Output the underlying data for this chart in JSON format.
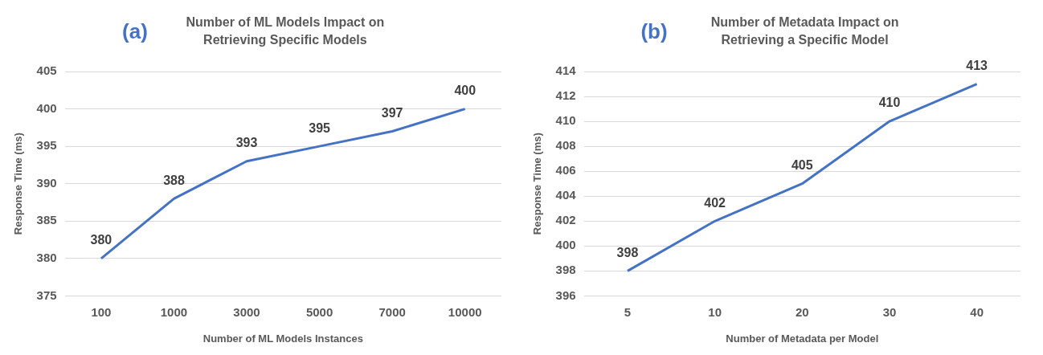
{
  "chart_data": [
    {
      "type": "line",
      "title": "Number of ML Models Impact on Retrieving Specific Models",
      "annotations": [
        "(a)"
      ],
      "xlabel": "Number of ML Models Instances",
      "ylabel": "Response Time (ms)",
      "categories": [
        "100",
        "1000",
        "3000",
        "5000",
        "7000",
        "10000"
      ],
      "series": [
        {
          "color": "#4472c4",
          "values": [
            380,
            388,
            393,
            395,
            397,
            400
          ]
        }
      ],
      "ylim": [
        375,
        405
      ],
      "yticks": [
        375,
        380,
        385,
        390,
        395,
        400,
        405
      ],
      "grid": "y",
      "data_labels": true,
      "marker": "none"
    },
    {
      "type": "line",
      "title": "Number of Metadata Impact on Retrieving a Specific Model",
      "annotations": [
        "(b)"
      ],
      "xlabel": "Number of Metadata per Model",
      "ylabel": "Response Time (ms)",
      "categories": [
        "5",
        "10",
        "20",
        "30",
        "40"
      ],
      "series": [
        {
          "color": "#4472c4",
          "values": [
            398,
            402,
            405,
            410,
            413
          ]
        }
      ],
      "ylim": [
        396,
        414
      ],
      "yticks": [
        396,
        398,
        400,
        402,
        404,
        406,
        408,
        410,
        412,
        414
      ],
      "grid": "y",
      "data_labels": true,
      "marker": "none"
    }
  ]
}
